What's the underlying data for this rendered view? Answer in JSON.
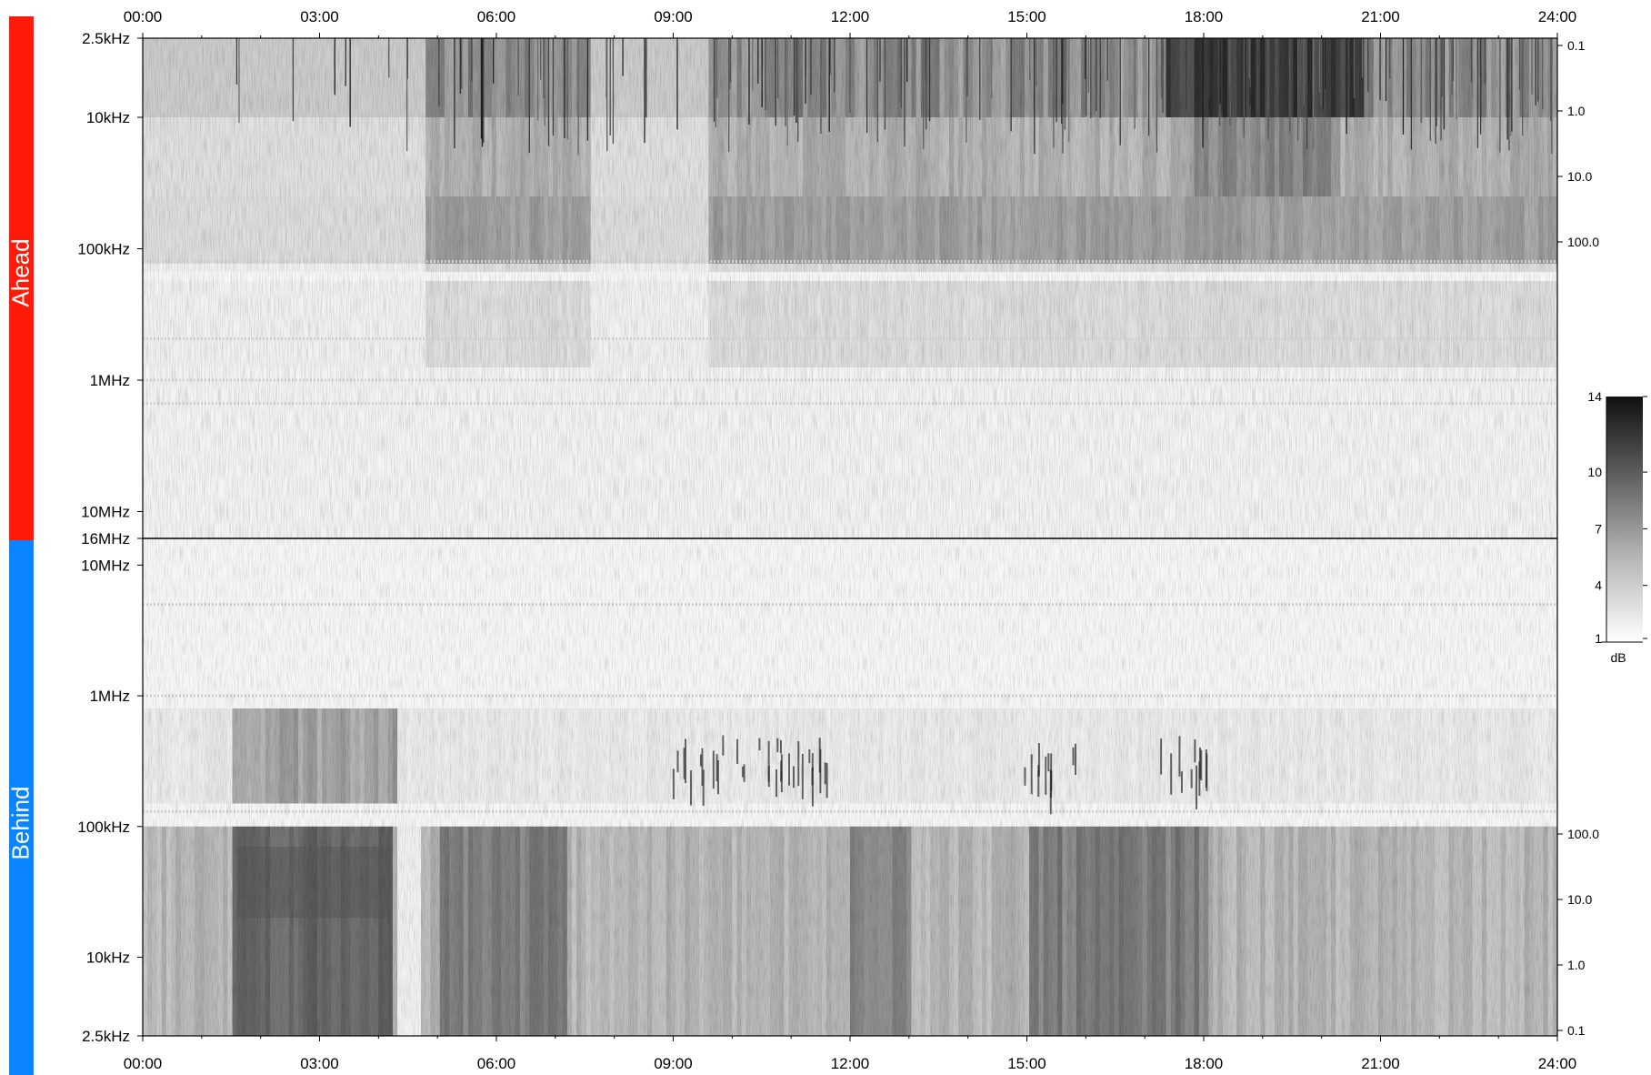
{
  "chart_data": [
    {
      "type": "heatmap",
      "panel": "Ahead",
      "x_ticks": [
        "00:00",
        "03:00",
        "06:00",
        "09:00",
        "12:00",
        "15:00",
        "18:00",
        "21:00",
        "24:00"
      ],
      "x_range_hours": [
        0,
        24
      ],
      "y_ticks_left": [
        "2.5kHz",
        "10kHz",
        "100kHz",
        "1MHz",
        "10MHz",
        "16MHz"
      ],
      "y_ticks_left_hz": [
        2500,
        10000,
        100000,
        1000000,
        10000000,
        16000000
      ],
      "y_scale": "log",
      "y_direction": "frequency increases downward",
      "y_ticks_right": [
        "0.1",
        "1.0",
        "10.0",
        "100.0"
      ],
      "y_ticks_right_values": [
        0.1,
        1.0,
        10.0,
        100.0
      ],
      "bright_intervals_hours": [
        [
          0,
          4.8
        ],
        [
          7.6,
          9.6
        ]
      ],
      "strong_burst_interval_hours": [
        17.3,
        20.7
      ]
    },
    {
      "type": "heatmap",
      "panel": "Behind",
      "x_ticks": [
        "00:00",
        "03:00",
        "06:00",
        "09:00",
        "12:00",
        "15:00",
        "18:00",
        "21:00",
        "24:00"
      ],
      "x_range_hours": [
        0,
        24
      ],
      "y_ticks_left": [
        "10MHz",
        "1MHz",
        "100kHz",
        "10kHz",
        "2.5kHz"
      ],
      "y_ticks_left_hz": [
        10000000,
        1000000,
        100000,
        10000,
        2500
      ],
      "y_scale": "log",
      "y_direction": "frequency increases upward",
      "y_ticks_right": [
        "100.0",
        "10.0",
        "1.0",
        "0.1"
      ],
      "y_ticks_right_values": [
        100.0,
        10.0,
        1.0,
        0.1
      ],
      "dark_intervals_hours": [
        [
          1.5,
          4.2
        ],
        [
          5.0,
          7.2
        ],
        [
          12.0,
          13.0
        ],
        [
          15.0,
          18.0
        ]
      ],
      "gap_interval_hours": [
        4.3,
        4.7
      ],
      "burst_times_hours": [
        9.4,
        10.4,
        11.3,
        15.4,
        17.6
      ]
    }
  ],
  "colorbar": {
    "ticks": [
      "14",
      "10",
      "7",
      "4",
      "1"
    ],
    "tick_values": [
      14,
      10,
      7,
      4,
      1
    ],
    "min": 1,
    "max": 14,
    "unit": "dB",
    "colormap": "white-to-black"
  },
  "panels": {
    "top_label": "Ahead",
    "bottom_label": "Behind",
    "top_color": "#ff1a0a",
    "bottom_color": "#0a84ff"
  }
}
